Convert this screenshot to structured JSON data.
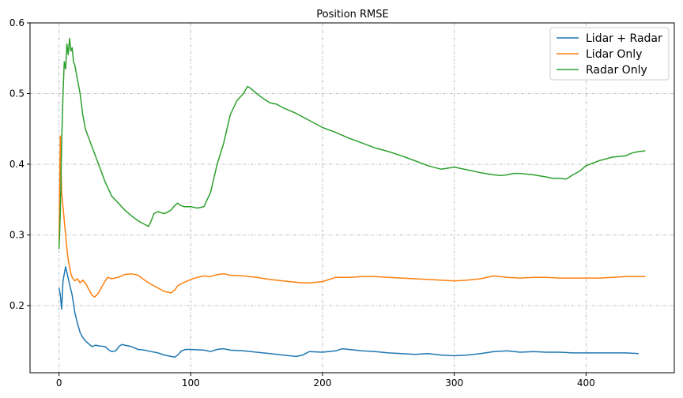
{
  "chart_data": {
    "type": "line",
    "title": "Position RMSE",
    "xlabel": "",
    "ylabel": "",
    "xlim": [
      -22,
      467
    ],
    "ylim": [
      0.105,
      0.6
    ],
    "xticks": [
      0,
      100,
      200,
      300,
      400
    ],
    "xtick_labels": [
      "0",
      "100",
      "200",
      "300",
      "400"
    ],
    "yticks": [
      0.2,
      0.3,
      0.4,
      0.5,
      0.6
    ],
    "ytick_labels": [
      "0.2",
      "0.3",
      "0.4",
      "0.5",
      "0.6"
    ],
    "grid": true,
    "legend_position": "top-right",
    "series": [
      {
        "name": "Lidar + Radar",
        "color": "#1f77b4",
        "x": [
          0,
          1,
          2,
          3,
          5,
          8,
          10,
          12,
          14,
          16,
          18,
          20,
          25,
          28,
          30,
          35,
          38,
          40,
          43,
          46,
          48,
          50,
          55,
          60,
          65,
          70,
          75,
          80,
          85,
          88,
          90,
          93,
          96,
          100,
          110,
          115,
          120,
          125,
          130,
          140,
          150,
          160,
          170,
          175,
          180,
          185,
          190,
          200,
          210,
          215,
          220,
          230,
          240,
          250,
          260,
          270,
          280,
          290,
          300,
          310,
          320,
          330,
          340,
          350,
          360,
          370,
          380,
          390,
          400,
          410,
          420,
          430,
          440
        ],
        "y": [
          0.225,
          0.215,
          0.195,
          0.235,
          0.255,
          0.23,
          0.215,
          0.19,
          0.175,
          0.162,
          0.155,
          0.15,
          0.142,
          0.144,
          0.143,
          0.142,
          0.137,
          0.135,
          0.136,
          0.143,
          0.145,
          0.144,
          0.142,
          0.138,
          0.137,
          0.135,
          0.133,
          0.13,
          0.128,
          0.127,
          0.13,
          0.136,
          0.138,
          0.138,
          0.137,
          0.135,
          0.138,
          0.139,
          0.137,
          0.136,
          0.134,
          0.132,
          0.13,
          0.129,
          0.128,
          0.13,
          0.135,
          0.134,
          0.136,
          0.139,
          0.138,
          0.136,
          0.135,
          0.133,
          0.132,
          0.131,
          0.132,
          0.13,
          0.129,
          0.13,
          0.132,
          0.135,
          0.136,
          0.134,
          0.135,
          0.134,
          0.134,
          0.133,
          0.133,
          0.133,
          0.133,
          0.133,
          0.132
        ]
      },
      {
        "name": "Lidar Only",
        "color": "#ff7f0e",
        "x": [
          0,
          1,
          2,
          3,
          4,
          5,
          6,
          7,
          8,
          9,
          10,
          12,
          14,
          16,
          18,
          20,
          22,
          25,
          27,
          30,
          32,
          35,
          37,
          40,
          45,
          50,
          55,
          60,
          65,
          70,
          75,
          80,
          85,
          88,
          90,
          95,
          100,
          105,
          110,
          115,
          120,
          125,
          130,
          140,
          150,
          160,
          170,
          180,
          185,
          190,
          200,
          210,
          220,
          230,
          240,
          250,
          260,
          270,
          280,
          290,
          300,
          310,
          320,
          330,
          340,
          350,
          360,
          370,
          380,
          390,
          400,
          410,
          420,
          430,
          440,
          445
        ],
        "y": [
          0.29,
          0.44,
          0.36,
          0.34,
          0.32,
          0.3,
          0.28,
          0.265,
          0.255,
          0.245,
          0.24,
          0.235,
          0.238,
          0.232,
          0.236,
          0.232,
          0.225,
          0.215,
          0.212,
          0.218,
          0.225,
          0.235,
          0.24,
          0.238,
          0.24,
          0.244,
          0.245,
          0.243,
          0.236,
          0.23,
          0.225,
          0.22,
          0.218,
          0.222,
          0.228,
          0.233,
          0.237,
          0.24,
          0.242,
          0.241,
          0.244,
          0.245,
          0.243,
          0.242,
          0.24,
          0.237,
          0.235,
          0.233,
          0.232,
          0.232,
          0.234,
          0.24,
          0.24,
          0.241,
          0.241,
          0.24,
          0.239,
          0.238,
          0.237,
          0.236,
          0.235,
          0.236,
          0.238,
          0.242,
          0.24,
          0.239,
          0.24,
          0.24,
          0.239,
          0.239,
          0.239,
          0.239,
          0.24,
          0.241,
          0.241,
          0.241
        ]
      },
      {
        "name": "Radar Only",
        "color": "#2ca02c",
        "x": [
          0,
          1,
          2,
          3,
          4,
          5,
          6,
          7,
          8,
          9,
          10,
          11,
          12,
          14,
          16,
          18,
          20,
          22,
          25,
          30,
          35,
          40,
          45,
          50,
          55,
          60,
          65,
          68,
          70,
          72,
          75,
          80,
          85,
          88,
          90,
          92,
          95,
          100,
          105,
          110,
          115,
          120,
          125,
          130,
          135,
          140,
          143,
          145,
          150,
          155,
          160,
          165,
          170,
          180,
          190,
          200,
          210,
          220,
          230,
          240,
          250,
          260,
          270,
          280,
          290,
          300,
          310,
          320,
          330,
          335,
          340,
          345,
          350,
          360,
          370,
          375,
          380,
          385,
          390,
          395,
          400,
          410,
          420,
          430,
          435,
          440,
          445
        ],
        "y": [
          0.28,
          0.33,
          0.43,
          0.5,
          0.545,
          0.535,
          0.57,
          0.555,
          0.578,
          0.56,
          0.565,
          0.545,
          0.54,
          0.52,
          0.5,
          0.47,
          0.45,
          0.44,
          0.425,
          0.4,
          0.375,
          0.355,
          0.345,
          0.335,
          0.327,
          0.32,
          0.315,
          0.312,
          0.32,
          0.33,
          0.333,
          0.33,
          0.335,
          0.342,
          0.345,
          0.342,
          0.34,
          0.34,
          0.338,
          0.34,
          0.36,
          0.4,
          0.43,
          0.47,
          0.49,
          0.5,
          0.51,
          0.508,
          0.5,
          0.493,
          0.487,
          0.485,
          0.48,
          0.472,
          0.462,
          0.452,
          0.445,
          0.437,
          0.43,
          0.423,
          0.418,
          0.412,
          0.405,
          0.398,
          0.393,
          0.396,
          0.392,
          0.388,
          0.385,
          0.384,
          0.385,
          0.387,
          0.387,
          0.385,
          0.382,
          0.38,
          0.38,
          0.379,
          0.385,
          0.39,
          0.398,
          0.405,
          0.41,
          0.412,
          0.416,
          0.418,
          0.419
        ]
      }
    ]
  }
}
